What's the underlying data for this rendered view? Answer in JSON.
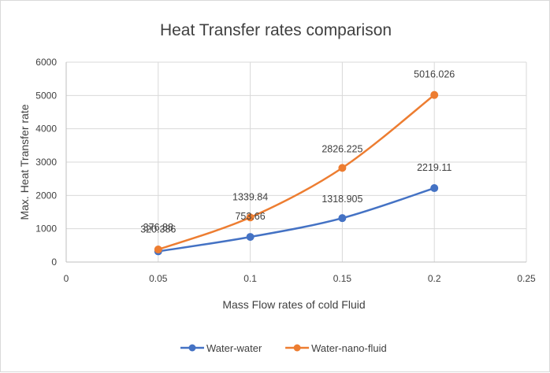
{
  "chart_data": {
    "type": "line",
    "title": "Heat Transfer rates comparison",
    "xlabel": "Mass Flow rates of cold Fluid",
    "ylabel": "Max. Heat Transfer rate",
    "xlim": [
      0,
      0.25
    ],
    "ylim": [
      0,
      6000
    ],
    "x_ticks": [
      0,
      0.05,
      0.1,
      0.15,
      0.2,
      0.25
    ],
    "x_tick_labels": [
      "0",
      "0.05",
      "0.1",
      "0.15",
      "0.2",
      "0.25"
    ],
    "y_ticks": [
      0,
      1000,
      2000,
      3000,
      4000,
      5000,
      6000
    ],
    "y_tick_labels": [
      "0",
      "1000",
      "2000",
      "3000",
      "4000",
      "5000",
      "6000"
    ],
    "grid": true,
    "legend_position": "bottom",
    "series": [
      {
        "name": "Water-water",
        "color": "#4472c4",
        "x": [
          0.05,
          0.1,
          0.15,
          0.2
        ],
        "values": [
          320.386,
          753.66,
          1318.905,
          2219.11
        ],
        "labels": [
          "320.386",
          "753.66",
          "1318.905",
          "2219.11"
        ]
      },
      {
        "name": "Water-nano-fluid",
        "color": "#ed7d31",
        "x": [
          0.05,
          0.1,
          0.15,
          0.2
        ],
        "values": [
          376.88,
          1339.84,
          2826.225,
          5016.026
        ],
        "labels": [
          "376.88",
          "1339.84",
          "2826.225",
          "5016.026"
        ]
      }
    ]
  }
}
